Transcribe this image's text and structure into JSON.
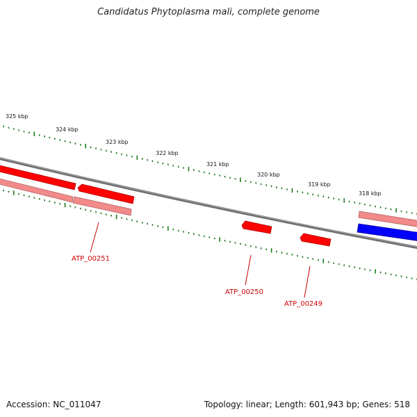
{
  "title": "Candidatus Phytoplasma mali, complete genome",
  "footer": {
    "accession": "Accession: NC_011047",
    "summary": "Topology: linear; Length: 601,943 bp; Genes: 518"
  },
  "scale_labels": [
    "325 kbp",
    "324 kbp",
    "323 kbp",
    "322 kbp",
    "321 kbp",
    "320 kbp",
    "319 kbp",
    "318 kbp"
  ],
  "genes": [
    {
      "label": "ATP_00251"
    },
    {
      "label": "ATP_00250"
    },
    {
      "label": "ATP_00249"
    }
  ],
  "colors": {
    "backbone": "#777777",
    "forward_feature": "#ff0000",
    "reverse_feature": "#0000ff",
    "pale_feature": "#f08080",
    "ticks": "#1a7a1a",
    "gene_label": "#cc0000"
  }
}
